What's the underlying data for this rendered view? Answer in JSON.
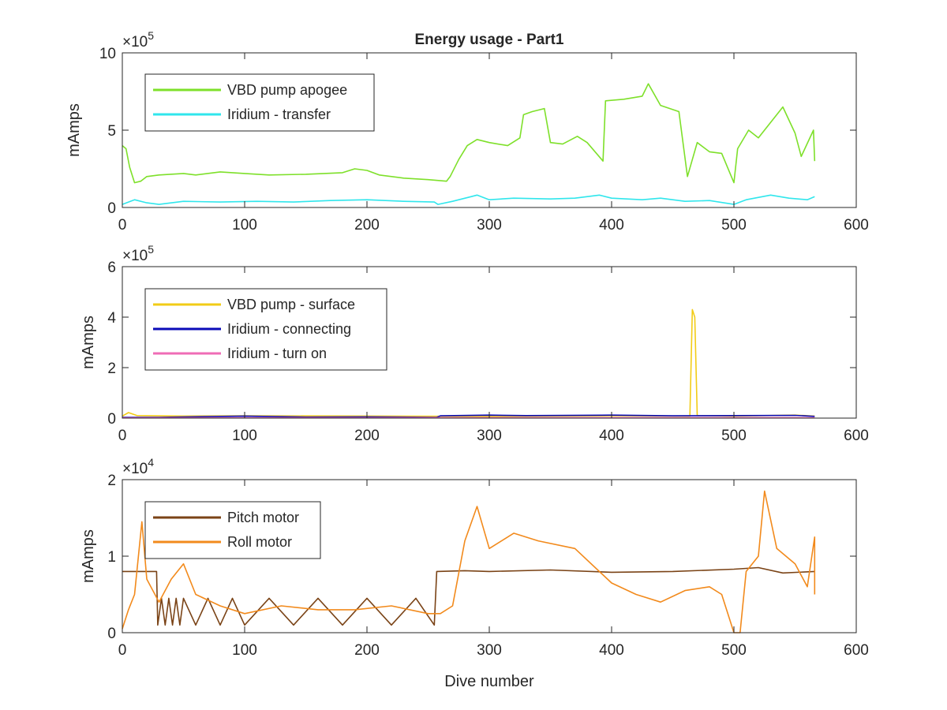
{
  "figure": {
    "title": "Energy usage - Part1",
    "xlabel": "Dive number"
  },
  "chart_data": [
    {
      "type": "line",
      "ylabel": "mAmps",
      "exponent_label": "×10",
      "exponent_power": "5",
      "xlim": [
        0,
        600
      ],
      "ylim": [
        0,
        1000000
      ],
      "x_ticks": [
        "0",
        "100",
        "200",
        "300",
        "400",
        "500",
        "600"
      ],
      "y_ticks": [
        "0",
        "5",
        "10"
      ],
      "grid": false,
      "legend_position": "top-left",
      "series": [
        {
          "name": "VBD pump apogee",
          "color": "#7ee02a",
          "points": [
            [
              0,
              400000
            ],
            [
              3,
              380000
            ],
            [
              6,
              260000
            ],
            [
              10,
              160000
            ],
            [
              15,
              170000
            ],
            [
              20,
              200000
            ],
            [
              30,
              210000
            ],
            [
              50,
              220000
            ],
            [
              60,
              210000
            ],
            [
              80,
              230000
            ],
            [
              100,
              220000
            ],
            [
              120,
              210000
            ],
            [
              150,
              215000
            ],
            [
              180,
              225000
            ],
            [
              190,
              250000
            ],
            [
              200,
              240000
            ],
            [
              210,
              210000
            ],
            [
              230,
              190000
            ],
            [
              250,
              180000
            ],
            [
              265,
              170000
            ],
            [
              268,
              200000
            ],
            [
              275,
              310000
            ],
            [
              282,
              400000
            ],
            [
              290,
              440000
            ],
            [
              300,
              420000
            ],
            [
              315,
              400000
            ],
            [
              325,
              450000
            ],
            [
              328,
              600000
            ],
            [
              335,
              620000
            ],
            [
              345,
              640000
            ],
            [
              350,
              420000
            ],
            [
              360,
              410000
            ],
            [
              372,
              460000
            ],
            [
              380,
              420000
            ],
            [
              393,
              300000
            ],
            [
              395,
              690000
            ],
            [
              410,
              700000
            ],
            [
              425,
              720000
            ],
            [
              430,
              800000
            ],
            [
              440,
              660000
            ],
            [
              455,
              620000
            ],
            [
              462,
              200000
            ],
            [
              470,
              420000
            ],
            [
              480,
              360000
            ],
            [
              490,
              350000
            ],
            [
              500,
              160000
            ],
            [
              503,
              380000
            ],
            [
              512,
              500000
            ],
            [
              520,
              450000
            ],
            [
              540,
              650000
            ],
            [
              550,
              480000
            ],
            [
              555,
              330000
            ],
            [
              565,
              500000
            ],
            [
              566,
              300000
            ]
          ]
        },
        {
          "name": "Iridium - transfer",
          "color": "#30e6ec",
          "points": [
            [
              0,
              20000
            ],
            [
              10,
              50000
            ],
            [
              20,
              30000
            ],
            [
              30,
              20000
            ],
            [
              50,
              40000
            ],
            [
              80,
              35000
            ],
            [
              110,
              40000
            ],
            [
              140,
              35000
            ],
            [
              170,
              45000
            ],
            [
              200,
              50000
            ],
            [
              230,
              40000
            ],
            [
              255,
              35000
            ],
            [
              258,
              20000
            ],
            [
              270,
              40000
            ],
            [
              285,
              70000
            ],
            [
              290,
              80000
            ],
            [
              300,
              50000
            ],
            [
              320,
              60000
            ],
            [
              350,
              55000
            ],
            [
              370,
              60000
            ],
            [
              390,
              80000
            ],
            [
              400,
              60000
            ],
            [
              425,
              50000
            ],
            [
              440,
              60000
            ],
            [
              460,
              40000
            ],
            [
              480,
              45000
            ],
            [
              500,
              20000
            ],
            [
              510,
              50000
            ],
            [
              530,
              80000
            ],
            [
              545,
              60000
            ],
            [
              560,
              50000
            ],
            [
              566,
              70000
            ]
          ]
        }
      ]
    },
    {
      "type": "line",
      "ylabel": "mAmps",
      "exponent_label": "×10",
      "exponent_power": "5",
      "xlim": [
        0,
        600
      ],
      "ylim": [
        0,
        600000
      ],
      "x_ticks": [
        "0",
        "100",
        "200",
        "300",
        "400",
        "500",
        "600"
      ],
      "y_ticks": [
        "0",
        "2",
        "4",
        "6"
      ],
      "grid": false,
      "legend_position": "top-left",
      "series": [
        {
          "name": "VBD pump - surface",
          "color": "#f2cc16",
          "points": [
            [
              0,
              8000
            ],
            [
              5,
              22000
            ],
            [
              12,
              10000
            ],
            [
              50,
              8000
            ],
            [
              100,
              9000
            ],
            [
              200,
              8000
            ],
            [
              300,
              7000
            ],
            [
              400,
              9000
            ],
            [
              464,
              8000
            ],
            [
              466,
              430000
            ],
            [
              468,
              400000
            ],
            [
              470,
              10000
            ],
            [
              500,
              8000
            ],
            [
              550,
              12000
            ],
            [
              566,
              8000
            ]
          ]
        },
        {
          "name": "Iridium - connecting",
          "color": "#0b0bb8",
          "points": [
            [
              0,
              3000
            ],
            [
              30,
              3000
            ],
            [
              100,
              8000
            ],
            [
              150,
              4000
            ],
            [
              200,
              5000
            ],
            [
              257,
              3000
            ],
            [
              260,
              9000
            ],
            [
              300,
              12000
            ],
            [
              330,
              10000
            ],
            [
              400,
              12000
            ],
            [
              450,
              9000
            ],
            [
              500,
              10000
            ],
            [
              550,
              11000
            ],
            [
              566,
              7000
            ]
          ]
        },
        {
          "name": "Iridium - turn on",
          "color": "#ef6cb6",
          "points": [
            [
              0,
              1000
            ],
            [
              100,
              1500
            ],
            [
              200,
              1500
            ],
            [
              300,
              2000
            ],
            [
              400,
              2000
            ],
            [
              500,
              2000
            ],
            [
              566,
              1500
            ]
          ]
        }
      ]
    },
    {
      "type": "line",
      "ylabel": "mAmps",
      "exponent_label": "×10",
      "exponent_power": "4",
      "xlim": [
        0,
        600
      ],
      "ylim": [
        0,
        20000
      ],
      "x_ticks": [
        "0",
        "100",
        "200",
        "300",
        "400",
        "500",
        "600"
      ],
      "y_ticks": [
        "0",
        "1",
        "2"
      ],
      "grid": false,
      "legend_position": "top-left",
      "series": [
        {
          "name": "Pitch motor",
          "color": "#7a4316",
          "points": [
            [
              0,
              8000
            ],
            [
              28,
              8000
            ],
            [
              29,
              1000
            ],
            [
              32,
              4500
            ],
            [
              35,
              1000
            ],
            [
              38,
              4500
            ],
            [
              41,
              1000
            ],
            [
              44,
              4500
            ],
            [
              47,
              1000
            ],
            [
              50,
              4500
            ],
            [
              60,
              1000
            ],
            [
              70,
              4500
            ],
            [
              80,
              1000
            ],
            [
              90,
              4500
            ],
            [
              100,
              1000
            ],
            [
              120,
              4500
            ],
            [
              140,
              1000
            ],
            [
              160,
              4500
            ],
            [
              180,
              1000
            ],
            [
              200,
              4500
            ],
            [
              220,
              1000
            ],
            [
              240,
              4500
            ],
            [
              255,
              1000
            ],
            [
              257,
              8000
            ],
            [
              280,
              8100
            ],
            [
              300,
              8000
            ],
            [
              350,
              8200
            ],
            [
              400,
              7900
            ],
            [
              450,
              8000
            ],
            [
              500,
              8300
            ],
            [
              520,
              8500
            ],
            [
              540,
              7800
            ],
            [
              566,
              8000
            ]
          ]
        },
        {
          "name": "Roll motor",
          "color": "#f28a1c",
          "points": [
            [
              0,
              500
            ],
            [
              5,
              3000
            ],
            [
              10,
              5000
            ],
            [
              16,
              14500
            ],
            [
              20,
              7000
            ],
            [
              30,
              4000
            ],
            [
              40,
              7000
            ],
            [
              50,
              9000
            ],
            [
              60,
              5000
            ],
            [
              80,
              3500
            ],
            [
              100,
              2500
            ],
            [
              130,
              3500
            ],
            [
              160,
              3000
            ],
            [
              190,
              3000
            ],
            [
              220,
              3500
            ],
            [
              250,
              2500
            ],
            [
              260,
              2500
            ],
            [
              270,
              3500
            ],
            [
              280,
              12000
            ],
            [
              290,
              16500
            ],
            [
              300,
              11000
            ],
            [
              320,
              13000
            ],
            [
              340,
              12000
            ],
            [
              370,
              11000
            ],
            [
              400,
              6500
            ],
            [
              420,
              5000
            ],
            [
              440,
              4000
            ],
            [
              460,
              5500
            ],
            [
              480,
              6000
            ],
            [
              490,
              5000
            ],
            [
              500,
              0
            ],
            [
              505,
              0
            ],
            [
              510,
              8000
            ],
            [
              520,
              10000
            ],
            [
              525,
              18500
            ],
            [
              535,
              11000
            ],
            [
              550,
              9000
            ],
            [
              560,
              6000
            ],
            [
              566,
              12500
            ],
            [
              566,
              5000
            ]
          ]
        }
      ]
    }
  ]
}
